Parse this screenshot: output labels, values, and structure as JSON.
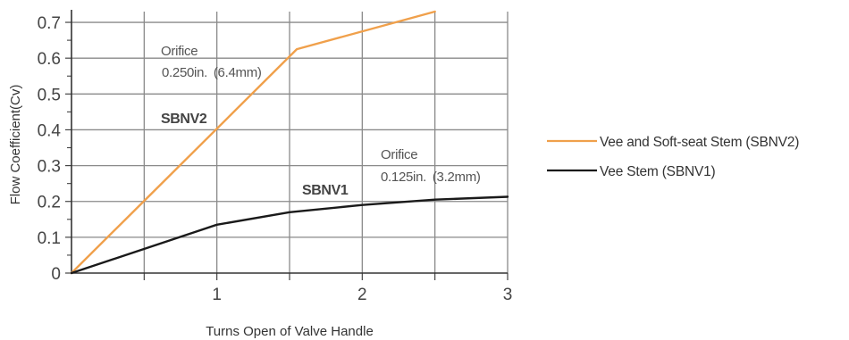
{
  "chart_data": {
    "type": "line",
    "title": "",
    "xlabel": "Turns Open of Valve Handle",
    "ylabel": "Flow Coefficient(Cv)",
    "xlim": [
      0,
      3
    ],
    "ylim": [
      0,
      0.73
    ],
    "x_ticks": [
      1,
      2,
      3
    ],
    "x_tick_labels": [
      "1",
      "2",
      "3"
    ],
    "x_minor_ticks": [
      0.5,
      1.5,
      2.5
    ],
    "y_ticks": [
      0,
      0.1,
      0.2,
      0.3,
      0.4,
      0.5,
      0.6,
      0.7
    ],
    "y_tick_labels": [
      "0",
      "0.1",
      "0.2",
      "0.3",
      "0.4",
      "0.5",
      "0.6",
      "0.7"
    ],
    "grid": true,
    "legend_position": "right",
    "series": [
      {
        "name": "Vee and Soft-seat Stem (SBNV2)",
        "color": "#f0a04b",
        "x": [
          0,
          1.55,
          2.5
        ],
        "y": [
          0,
          0.625,
          0.73
        ]
      },
      {
        "name": "Vee Stem (SBNV1)",
        "color": "#1a1a1a",
        "x": [
          0,
          1,
          1.5,
          2,
          2.5,
          3
        ],
        "y": [
          0,
          0.135,
          0.17,
          0.19,
          0.205,
          0.213
        ]
      }
    ],
    "annotations": {
      "orifice_large": {
        "title": "Orifice",
        "size_in": "0.250in.",
        "size_mm": "(6.4mm)"
      },
      "orifice_small": {
        "title": "Orifice",
        "size_in": "0.125in.",
        "size_mm": "(3.2mm)"
      },
      "sbnv2_label": "SBNV2",
      "sbnv1_label": "SBNV1"
    }
  }
}
